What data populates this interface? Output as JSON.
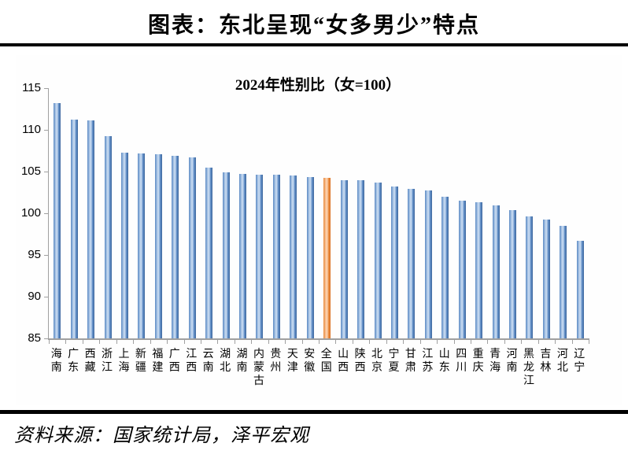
{
  "header": {
    "title": "图表：东北呈现“女多男少”特点"
  },
  "chart_data": {
    "type": "bar",
    "title": "2024年性别比（女=100）",
    "categories": [
      "海南",
      "广东",
      "西藏",
      "浙江",
      "上海",
      "新疆",
      "福建",
      "广西",
      "江西",
      "云南",
      "湖北",
      "湖南",
      "内蒙古",
      "贵州",
      "天津",
      "安徽",
      "全国",
      "山西",
      "陕西",
      "北京",
      "宁夏",
      "甘肃",
      "江苏",
      "山东",
      "四川",
      "重庆",
      "青海",
      "河南",
      "黑龙江",
      "吉林",
      "河北",
      "辽宁"
    ],
    "values": [
      113.2,
      111.2,
      111.1,
      109.2,
      107.3,
      107.2,
      107.1,
      106.9,
      106.7,
      105.5,
      104.9,
      104.7,
      104.6,
      104.6,
      104.5,
      104.3,
      104.2,
      104.0,
      104.0,
      103.7,
      103.2,
      102.9,
      102.7,
      102.0,
      101.5,
      101.3,
      100.9,
      100.4,
      99.6,
      99.2,
      98.5,
      96.7
    ],
    "highlight_category": "全国",
    "highlight_index": 16,
    "xlabel": "",
    "ylabel": "",
    "ylim": [
      85,
      115
    ],
    "yticks": [
      115,
      110,
      105,
      100,
      95,
      90,
      85
    ],
    "grid": false,
    "legend": false,
    "colors": {
      "bar_edge": "#41699e",
      "bar_mid": "#5b8ac4",
      "bar_light": "#c3d7ef",
      "highlight_edge": "#d96f22",
      "highlight_mid": "#e98a3e",
      "highlight_light": "#fbd0ab",
      "axis": "#a0a0a0"
    }
  },
  "footer": {
    "source": "资料来源：国家统计局，泽平宏观"
  }
}
